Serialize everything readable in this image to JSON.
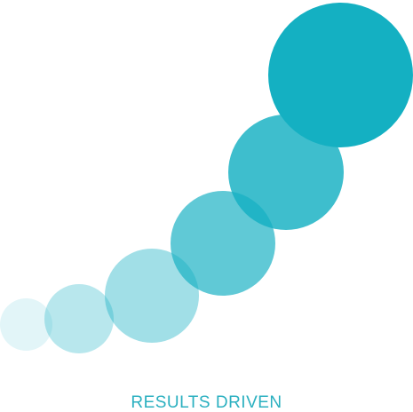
{
  "graphic": {
    "circles": [
      {
        "color": "#14b0c2",
        "opacity": 0.12
      },
      {
        "color": "#14b0c2",
        "opacity": 0.3
      },
      {
        "color": "#14b0c2",
        "opacity": 0.4
      },
      {
        "color": "#14b0c2",
        "opacity": 0.68
      },
      {
        "color": "#14b0c2",
        "opacity": 0.82
      },
      {
        "color": "#14b0c2",
        "opacity": 1.0
      }
    ]
  },
  "tagline": {
    "text": "RESULTS DRIVEN",
    "color": "#2bb0c0"
  }
}
